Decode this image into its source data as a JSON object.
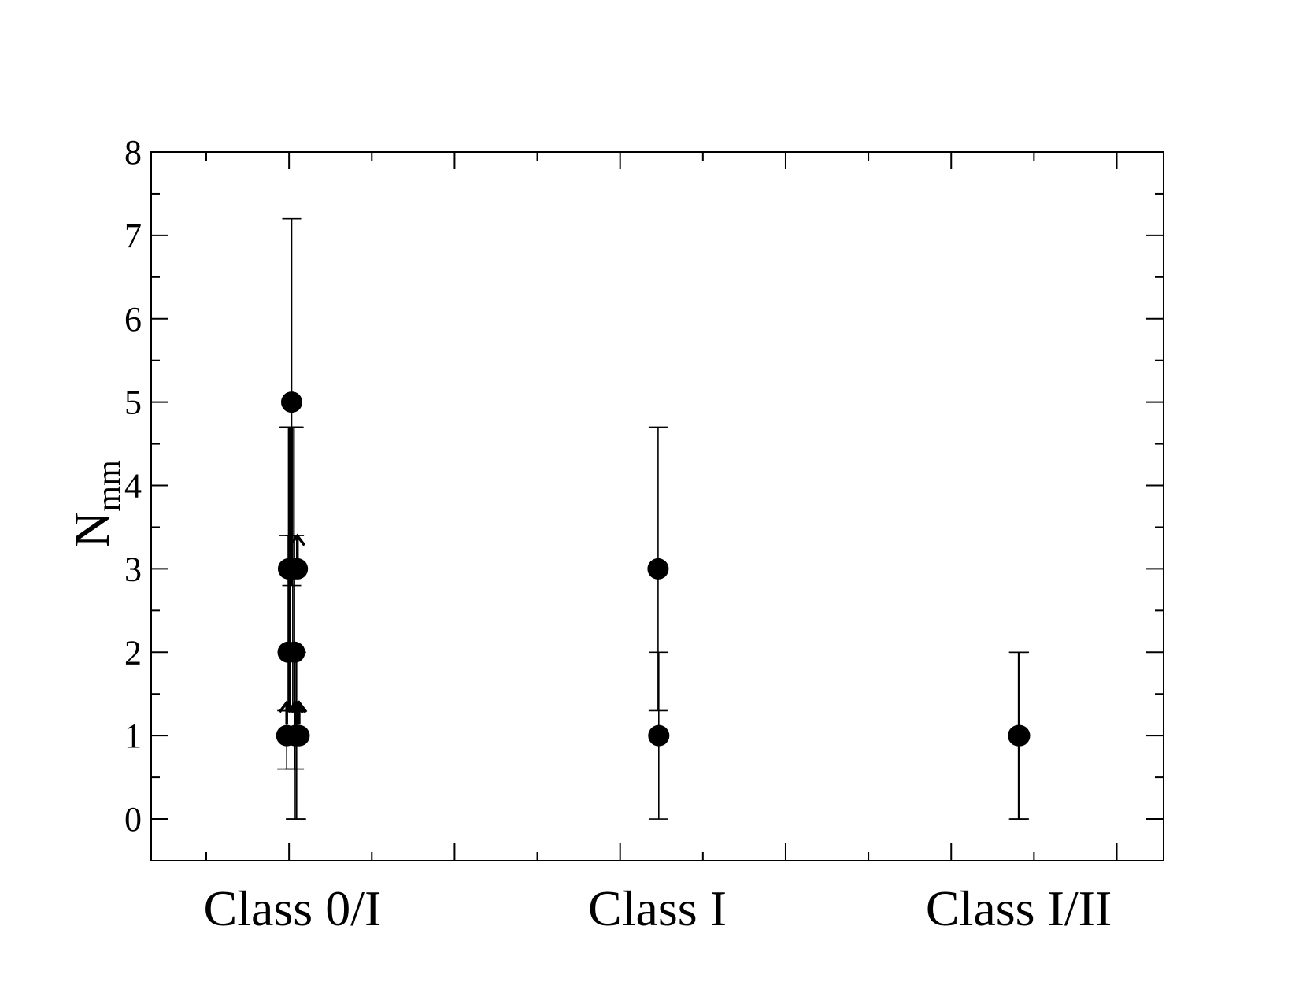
{
  "chart_data": {
    "type": "scatter",
    "title": "",
    "ylabel": "N",
    "ylabel_subscript": "mm",
    "xlabel": "",
    "ylim": [
      -0.5,
      8
    ],
    "yticks": [
      0,
      1,
      2,
      3,
      4,
      5,
      6,
      7,
      8
    ],
    "categories": [
      "Class 0/I",
      "Class I",
      "Class I/II"
    ],
    "grid": false,
    "legend": "none",
    "marker_color": "#000000",
    "points": [
      {
        "category": "Class 0/I",
        "offset": -0.08,
        "y": 1,
        "err_low": 0.6,
        "err_high": 1.3,
        "lower_limit": true
      },
      {
        "category": "Class 0/I",
        "offset": -0.06,
        "y": 2,
        "err_low": 1.3,
        "err_high": 3.4,
        "lower_limit": false
      },
      {
        "category": "Class 0/I",
        "offset": -0.055,
        "y": 3,
        "err_low": 1.3,
        "err_high": 4.7,
        "lower_limit": false
      },
      {
        "category": "Class 0/I",
        "offset": -0.04,
        "y": 3,
        "err_low": 1.3,
        "err_high": 4.7,
        "lower_limit": false
      },
      {
        "category": "Class 0/I",
        "offset": -0.025,
        "y": 3,
        "err_low": 1.3,
        "err_high": 4.7,
        "lower_limit": false
      },
      {
        "category": "Class 0/I",
        "offset": -0.01,
        "y": 5,
        "err_low": 2.8,
        "err_high": 7.2,
        "lower_limit": false
      },
      {
        "category": "Class 0/I",
        "offset": 0.005,
        "y": 3,
        "err_low": 1.3,
        "err_high": 4.7,
        "lower_limit": false
      },
      {
        "category": "Class 0/I",
        "offset": 0.025,
        "y": 3,
        "err_low": 1.3,
        "err_high": 4.7,
        "lower_limit": false
      },
      {
        "category": "Class 0/I",
        "offset": 0.03,
        "y": 2,
        "err_low": 0.6,
        "err_high": 3.4,
        "lower_limit": false
      },
      {
        "category": "Class 0/I",
        "offset": 0.04,
        "y": 1,
        "err_low": 0.0,
        "err_high": 2.0,
        "lower_limit": true
      },
      {
        "category": "Class 0/I",
        "offset": 0.06,
        "y": 1,
        "err_low": 0.0,
        "err_high": 2.0,
        "lower_limit": true
      },
      {
        "category": "Class 0/I",
        "offset": 0.07,
        "y": 3,
        "err_low": null,
        "err_high": null,
        "lower_limit": true
      },
      {
        "category": "Class 0/I",
        "offset": 0.08,
        "y": 1,
        "err_low": null,
        "err_high": null,
        "lower_limit": true
      },
      {
        "category": "Class 0/I",
        "offset": 0.095,
        "y": 1,
        "err_low": null,
        "err_high": null,
        "lower_limit": true
      },
      {
        "category": "Class I",
        "offset": 0.01,
        "y": 3,
        "err_low": 1.3,
        "err_high": 4.7,
        "lower_limit": false
      },
      {
        "category": "Class I",
        "offset": 0.02,
        "y": 1,
        "err_low": 0.0,
        "err_high": 2.0,
        "lower_limit": false
      },
      {
        "category": "Class I/II",
        "offset": -0.005,
        "y": 1,
        "err_low": 0.0,
        "err_high": 2.0,
        "lower_limit": false
      },
      {
        "category": "Class I/II",
        "offset": 0.01,
        "y": 1,
        "err_low": 0.0,
        "err_high": 2.0,
        "lower_limit": false
      }
    ]
  }
}
